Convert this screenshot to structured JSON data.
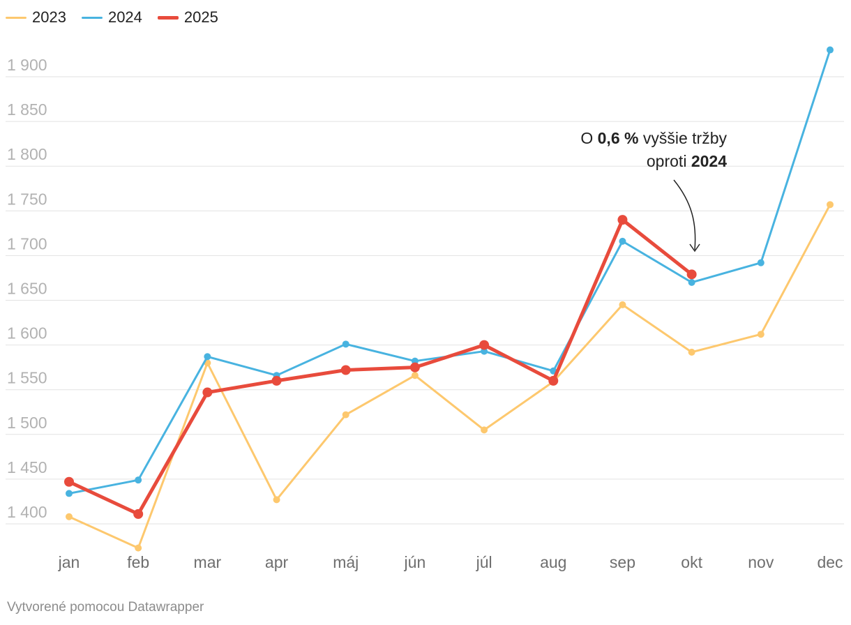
{
  "chart_data": {
    "type": "line",
    "categories": [
      "jan",
      "feb",
      "mar",
      "apr",
      "máj",
      "jún",
      "júl",
      "aug",
      "sep",
      "okt",
      "nov",
      "dec"
    ],
    "series": [
      {
        "name": "2023",
        "color": "#fdc86e",
        "values": [
          1408,
          1373,
          1580,
          1427,
          1522,
          1566,
          1505,
          1559,
          1645,
          1592,
          1612,
          1757
        ]
      },
      {
        "name": "2024",
        "color": "#48b3e0",
        "values": [
          1434,
          1449,
          1587,
          1566,
          1601,
          1582,
          1593,
          1571,
          1716,
          1670,
          1692,
          1930
        ]
      },
      {
        "name": "2025",
        "color": "#e84b3c",
        "values": [
          1447,
          1411,
          1547,
          1560,
          1572,
          1575,
          1600,
          1560,
          1740,
          1679,
          null,
          null
        ]
      }
    ],
    "yticks": [
      "1 400",
      "1 450",
      "1 500",
      "1 550",
      "1 600",
      "1 650",
      "1 700",
      "1 750",
      "1 800",
      "1 850",
      "1 900"
    ],
    "ylim": [
      1400,
      1900
    ],
    "annotation": {
      "prefix": "O ",
      "value": "0,6 %",
      "middle": " vyššie tržby",
      "line2_prefix": "oproti ",
      "line2_bold": "2024"
    }
  },
  "legend": [
    {
      "label": "2023",
      "color": "#fdc86e"
    },
    {
      "label": "2024",
      "color": "#48b3e0"
    },
    {
      "label": "2025",
      "color": "#e84b3c"
    }
  ],
  "footer": "Vytvorené pomocou Datawrapper"
}
